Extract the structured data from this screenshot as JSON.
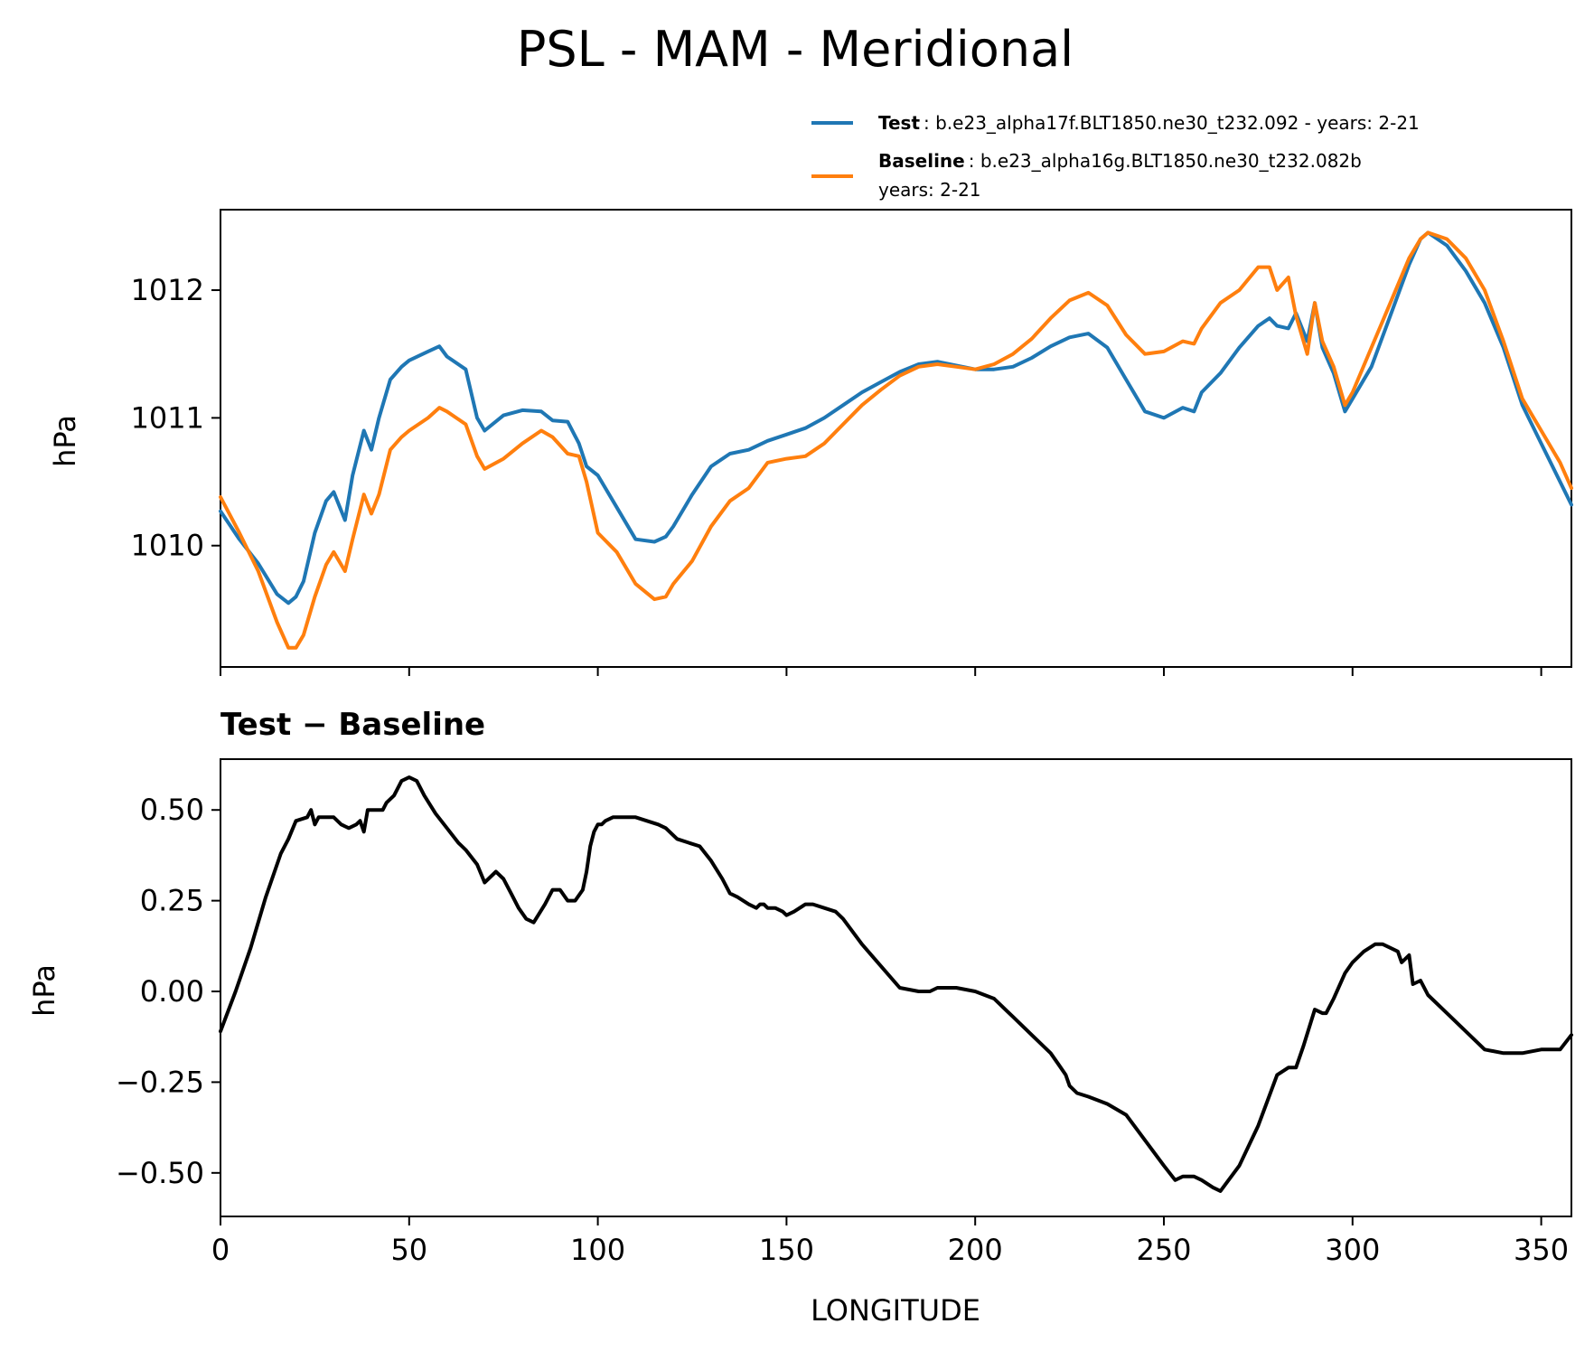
{
  "figure": {
    "title": "PSL - MAM - Meridional",
    "legend": {
      "test_label": "Test",
      "test_text": ": b.e23_alpha17f.BLT1850.ne30_t232.092 - years: 2-21",
      "baseline_label": "Baseline",
      "baseline_text_line1": ": b.e23_alpha16g.BLT1850.ne30_t232.082b",
      "baseline_text_line2": "years: 2-21"
    },
    "diff_title": "Test − Baseline",
    "colors": {
      "test": "#1f77b4",
      "baseline": "#ff7f0e",
      "diff": "#000000"
    }
  },
  "chart_data": [
    {
      "type": "line",
      "title": "PSL - MAM - Meridional",
      "xlabel": "",
      "ylabel": "hPa",
      "xlim": [
        0,
        358
      ],
      "ylim": [
        1009.05,
        1012.63
      ],
      "xticks": [
        0,
        50,
        100,
        150,
        200,
        250,
        300,
        350
      ],
      "yticks": [
        1010,
        1011,
        1012
      ],
      "ytick_labels": [
        "1010",
        "1011",
        "1012"
      ],
      "legend": "top-right, above plot",
      "x": [
        0,
        5,
        10,
        15,
        18,
        20,
        22,
        25,
        28,
        30,
        33,
        35,
        38,
        40,
        42,
        45,
        48,
        50,
        55,
        58,
        60,
        65,
        68,
        70,
        75,
        80,
        85,
        88,
        92,
        95,
        97,
        100,
        105,
        110,
        115,
        118,
        120,
        125,
        130,
        135,
        140,
        145,
        150,
        155,
        160,
        165,
        170,
        175,
        180,
        185,
        190,
        195,
        200,
        205,
        210,
        215,
        220,
        225,
        230,
        235,
        240,
        245,
        250,
        255,
        258,
        260,
        265,
        270,
        275,
        278,
        280,
        283,
        285,
        288,
        290,
        292,
        295,
        298,
        300,
        305,
        310,
        315,
        318,
        320,
        325,
        330,
        335,
        340,
        345,
        350,
        355,
        358
      ],
      "series": [
        {
          "name": "Test",
          "values": [
            1010.27,
            1010.05,
            1009.86,
            1009.62,
            1009.55,
            1009.6,
            1009.72,
            1010.1,
            1010.35,
            1010.42,
            1010.2,
            1010.55,
            1010.9,
            1010.75,
            1011.0,
            1011.3,
            1011.4,
            1011.45,
            1011.52,
            1011.56,
            1011.48,
            1011.38,
            1011.0,
            1010.9,
            1011.02,
            1011.06,
            1011.05,
            1010.98,
            1010.97,
            1010.8,
            1010.62,
            1010.55,
            1010.3,
            1010.05,
            1010.03,
            1010.07,
            1010.15,
            1010.4,
            1010.62,
            1010.72,
            1010.75,
            1010.82,
            1010.87,
            1010.92,
            1011.0,
            1011.1,
            1011.2,
            1011.28,
            1011.36,
            1011.42,
            1011.44,
            1011.41,
            1011.38,
            1011.38,
            1011.4,
            1011.47,
            1011.56,
            1011.63,
            1011.66,
            1011.55,
            1011.3,
            1011.05,
            1011.0,
            1011.08,
            1011.05,
            1011.2,
            1011.35,
            1011.55,
            1011.72,
            1011.78,
            1011.72,
            1011.7,
            1011.82,
            1011.6,
            1011.9,
            1011.55,
            1011.35,
            1011.05,
            1011.15,
            1011.4,
            1011.8,
            1012.2,
            1012.4,
            1012.45,
            1012.35,
            1012.15,
            1011.9,
            1011.55,
            1011.1,
            1010.8,
            1010.5,
            1010.32
          ]
        },
        {
          "name": "Baseline",
          "values": [
            1010.38,
            1010.1,
            1009.8,
            1009.4,
            1009.2,
            1009.2,
            1009.3,
            1009.6,
            1009.85,
            1009.95,
            1009.8,
            1010.05,
            1010.4,
            1010.25,
            1010.4,
            1010.75,
            1010.85,
            1010.9,
            1011.0,
            1011.08,
            1011.05,
            1010.95,
            1010.7,
            1010.6,
            1010.68,
            1010.8,
            1010.9,
            1010.85,
            1010.72,
            1010.7,
            1010.5,
            1010.1,
            1009.95,
            1009.7,
            1009.58,
            1009.6,
            1009.7,
            1009.88,
            1010.15,
            1010.35,
            1010.45,
            1010.65,
            1010.68,
            1010.7,
            1010.8,
            1010.95,
            1011.1,
            1011.22,
            1011.33,
            1011.4,
            1011.42,
            1011.4,
            1011.38,
            1011.42,
            1011.5,
            1011.62,
            1011.78,
            1011.92,
            1011.98,
            1011.88,
            1011.65,
            1011.5,
            1011.52,
            1011.6,
            1011.58,
            1011.7,
            1011.9,
            1012.0,
            1012.18,
            1012.18,
            1012.0,
            1012.1,
            1011.8,
            1011.5,
            1011.9,
            1011.6,
            1011.4,
            1011.1,
            1011.2,
            1011.55,
            1011.9,
            1012.25,
            1012.4,
            1012.45,
            1012.4,
            1012.25,
            1012.0,
            1011.6,
            1011.15,
            1010.9,
            1010.65,
            1010.45
          ]
        }
      ]
    },
    {
      "type": "line",
      "title": "Test − Baseline",
      "xlabel": "LONGITUDE",
      "ylabel": "hPa",
      "xlim": [
        0,
        358
      ],
      "ylim": [
        -0.62,
        0.64
      ],
      "xticks": [
        0,
        50,
        100,
        150,
        200,
        250,
        300,
        350
      ],
      "xtick_labels": [
        "0",
        "50",
        "100",
        "150",
        "200",
        "250",
        "300",
        "350"
      ],
      "yticks": [
        -0.5,
        -0.25,
        0.0,
        0.25,
        0.5
      ],
      "ytick_labels": [
        "−0.50",
        "−0.25",
        "0.00",
        "0.25",
        "0.50"
      ],
      "x": [
        0,
        4,
        8,
        12,
        16,
        18,
        20,
        23,
        24,
        25,
        26,
        28,
        30,
        32,
        34,
        36,
        37,
        38,
        39,
        40,
        43,
        44,
        46,
        48,
        50,
        52,
        54,
        57,
        60,
        63,
        65,
        68,
        70,
        73,
        75,
        77,
        79,
        81,
        83,
        86,
        88,
        90,
        92,
        94,
        96,
        97,
        98,
        99,
        100,
        101,
        102,
        104,
        107,
        110,
        113,
        116,
        118,
        121,
        124,
        127,
        130,
        133,
        135,
        137,
        140,
        142,
        143,
        144,
        145,
        147,
        149,
        150,
        152,
        155,
        157,
        160,
        163,
        165,
        170,
        175,
        180,
        185,
        188,
        190,
        195,
        200,
        205,
        208,
        210,
        215,
        220,
        222,
        224,
        225,
        227,
        230,
        235,
        240,
        245,
        250,
        253,
        255,
        258,
        260,
        263,
        265,
        270,
        275,
        280,
        283,
        285,
        287,
        290,
        292,
        293,
        295,
        298,
        300,
        303,
        306,
        308,
        310,
        312,
        313,
        315,
        316,
        318,
        320,
        325,
        330,
        335,
        340,
        345,
        350,
        353,
        355,
        358
      ],
      "series": [
        {
          "name": "Test − Baseline",
          "values": [
            -0.11,
            0.0,
            0.12,
            0.26,
            0.38,
            0.42,
            0.47,
            0.48,
            0.5,
            0.46,
            0.48,
            0.48,
            0.48,
            0.46,
            0.45,
            0.46,
            0.47,
            0.44,
            0.5,
            0.5,
            0.5,
            0.52,
            0.54,
            0.58,
            0.59,
            0.58,
            0.54,
            0.49,
            0.45,
            0.41,
            0.39,
            0.35,
            0.3,
            0.33,
            0.31,
            0.27,
            0.23,
            0.2,
            0.19,
            0.24,
            0.28,
            0.28,
            0.25,
            0.25,
            0.28,
            0.33,
            0.4,
            0.44,
            0.46,
            0.46,
            0.47,
            0.48,
            0.48,
            0.48,
            0.47,
            0.46,
            0.45,
            0.42,
            0.41,
            0.4,
            0.36,
            0.31,
            0.27,
            0.26,
            0.24,
            0.23,
            0.24,
            0.24,
            0.23,
            0.23,
            0.22,
            0.21,
            0.22,
            0.24,
            0.24,
            0.23,
            0.22,
            0.2,
            0.13,
            0.07,
            0.01,
            0.0,
            0.0,
            0.01,
            0.01,
            0.0,
            -0.02,
            -0.05,
            -0.07,
            -0.12,
            -0.17,
            -0.2,
            -0.23,
            -0.26,
            -0.28,
            -0.29,
            -0.31,
            -0.34,
            -0.41,
            -0.48,
            -0.52,
            -0.51,
            -0.51,
            -0.52,
            -0.54,
            -0.55,
            -0.48,
            -0.37,
            -0.23,
            -0.21,
            -0.21,
            -0.15,
            -0.05,
            -0.06,
            -0.06,
            -0.02,
            0.05,
            0.08,
            0.11,
            0.13,
            0.13,
            0.12,
            0.11,
            0.08,
            0.1,
            0.02,
            0.03,
            -0.01,
            -0.06,
            -0.11,
            -0.16,
            -0.17,
            -0.17,
            -0.16,
            -0.16,
            -0.16,
            -0.12
          ]
        }
      ]
    }
  ]
}
